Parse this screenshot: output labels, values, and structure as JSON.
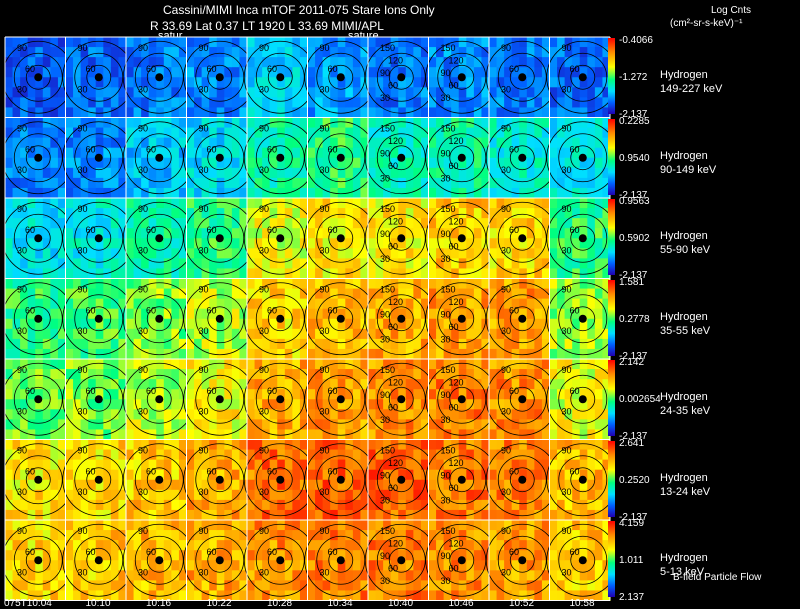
{
  "header": {
    "title_line1": "Cassini/MIMI Inca mTOF  2011-075   Stare    Ions Only",
    "title_line2": "R         33.69 Lat 0.37 LT 1920 L          33.69   MIMI/APL",
    "units_line1": "Log Cnts",
    "units_line2": "(cm²-sr-s-keV)⁻¹",
    "satur_left": "satur",
    "satur_right": "sature"
  },
  "colors": {
    "background": "#000000",
    "frame": "#ffffff",
    "colormap": [
      "#2000b0",
      "#0060ff",
      "#00e0ff",
      "#00ff80",
      "#ffff00",
      "#ff8800",
      "#ff0000"
    ]
  },
  "footer": {
    "note": "B-field Particle Flow"
  },
  "chart_data": {
    "type": "heatmap",
    "title": "Cassini/MIMI Inca mTOF 2011-075 Stare Ions Only",
    "x_tick_labels": [
      "075T10:04",
      "10:10",
      "10:16",
      "10:22",
      "10:28",
      "10:34",
      "10:40",
      "10:46",
      "10:52",
      "10:58"
    ],
    "columns": 10,
    "contour_labels_left": [
      "90",
      "60",
      "30"
    ],
    "contour_labels_right": [
      "150",
      "120",
      "90",
      "60",
      "30"
    ],
    "rows": [
      {
        "species": "Hydrogen",
        "energy": "149-227 keV",
        "scale_max": "-0.4066",
        "scale_mid": "-1.272",
        "scale_min": "-2.137",
        "intensity": [
          0.15,
          0.18,
          0.2,
          0.22,
          0.32,
          0.25,
          0.2,
          0.22,
          0.2,
          0.18
        ]
      },
      {
        "species": "Hydrogen",
        "energy": "90-149 keV",
        "scale_max": "0.2285",
        "scale_mid": "0.9540",
        "scale_min": "-2.137",
        "intensity": [
          0.2,
          0.22,
          0.3,
          0.34,
          0.45,
          0.5,
          0.42,
          0.45,
          0.4,
          0.36
        ]
      },
      {
        "species": "Hydrogen",
        "energy": "55-90 keV",
        "scale_max": "0.9563",
        "scale_mid": "0.5902",
        "scale_min": "-2.137",
        "intensity": [
          0.35,
          0.38,
          0.45,
          0.5,
          0.66,
          0.7,
          0.7,
          0.74,
          0.72,
          0.5
        ]
      },
      {
        "species": "Hydrogen",
        "energy": "35-55 keV",
        "scale_max": "1.581",
        "scale_mid": "0.2778",
        "scale_min": "-2.137",
        "intensity": [
          0.5,
          0.52,
          0.58,
          0.62,
          0.72,
          0.76,
          0.78,
          0.8,
          0.8,
          0.6
        ]
      },
      {
        "species": "Hydrogen",
        "energy": "24-35 keV",
        "scale_max": "2.142",
        "scale_mid": "0.002654",
        "scale_min": "-2.137",
        "intensity": [
          0.55,
          0.57,
          0.62,
          0.68,
          0.78,
          0.8,
          0.82,
          0.84,
          0.82,
          0.66
        ]
      },
      {
        "species": "Hydrogen",
        "energy": "13-24 keV",
        "scale_max": "2.641",
        "scale_mid": "0.2520",
        "scale_min": "-2.137",
        "intensity": [
          0.7,
          0.72,
          0.74,
          0.78,
          0.86,
          0.88,
          0.88,
          0.86,
          0.84,
          0.76
        ]
      },
      {
        "species": "Hydrogen",
        "energy": "5-13 keV",
        "scale_max": "4.159",
        "scale_mid": "1.011",
        "scale_min": "2.137",
        "intensity": [
          0.72,
          0.74,
          0.76,
          0.78,
          0.82,
          0.84,
          0.84,
          0.82,
          0.8,
          0.74
        ]
      }
    ]
  }
}
